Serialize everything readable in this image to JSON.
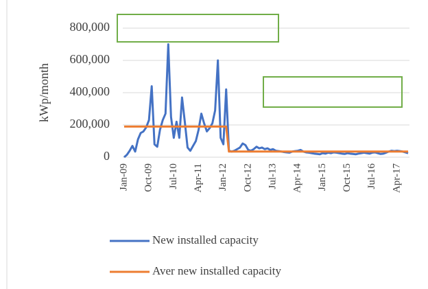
{
  "chart_data": {
    "type": "line",
    "y_label": "kWp/month",
    "categories": [
      "Jan-09",
      null,
      null,
      null,
      null,
      null,
      null,
      null,
      null,
      "Oct-09",
      null,
      null,
      null,
      null,
      null,
      null,
      null,
      null,
      "Jul-10",
      null,
      null,
      null,
      null,
      null,
      null,
      null,
      null,
      "Apr-11",
      null,
      null,
      null,
      null,
      null,
      null,
      null,
      null,
      "Jan-12",
      null,
      null,
      null,
      null,
      null,
      null,
      null,
      null,
      "Oct-12",
      null,
      null,
      null,
      null,
      null,
      null,
      null,
      null,
      "Jul-13",
      null,
      null,
      null,
      null,
      null,
      null,
      null,
      null,
      "Apr-14",
      null,
      null,
      null,
      null,
      null,
      null,
      null,
      null,
      "Jan-15",
      null,
      null,
      null,
      null,
      null,
      null,
      null,
      null,
      "Oct-15",
      null,
      null,
      null,
      null,
      null,
      null,
      null,
      null,
      "Jul-16",
      null,
      null,
      null,
      null,
      null,
      null,
      null,
      null,
      "Apr-17",
      null,
      null,
      null,
      null
    ],
    "series": [
      {
        "name": "New installed capacity",
        "color": "#4472c4",
        "values": [
          0,
          15000,
          40000,
          70000,
          35000,
          110000,
          150000,
          160000,
          185000,
          230000,
          440000,
          80000,
          65000,
          170000,
          230000,
          270000,
          700000,
          250000,
          120000,
          220000,
          120000,
          370000,
          220000,
          60000,
          40000,
          70000,
          100000,
          170000,
          270000,
          210000,
          160000,
          180000,
          210000,
          290000,
          600000,
          120000,
          80000,
          420000,
          40000,
          35000,
          40000,
          50000,
          60000,
          85000,
          75000,
          45000,
          40000,
          50000,
          65000,
          55000,
          60000,
          50000,
          55000,
          45000,
          50000,
          40000,
          38000,
          35000,
          32000,
          30000,
          28000,
          35000,
          38000,
          40000,
          45000,
          35000,
          30000,
          28000,
          25000,
          22000,
          20000,
          18000,
          25000,
          22000,
          28000,
          25000,
          30000,
          28000,
          25000,
          22000,
          20000,
          25000,
          22000,
          20000,
          18000,
          22000,
          25000,
          28000,
          25000,
          22000,
          28000,
          30000,
          25000,
          20000,
          22000,
          28000,
          35000,
          40000,
          38000,
          40000,
          38000,
          35000,
          30000,
          25000
        ]
      },
      {
        "name": "Aver new installed capacity",
        "color": "#ed7d31",
        "values": [
          190000,
          190000,
          190000,
          190000,
          190000,
          190000,
          190000,
          190000,
          190000,
          190000,
          190000,
          190000,
          190000,
          190000,
          190000,
          190000,
          190000,
          190000,
          190000,
          190000,
          190000,
          190000,
          190000,
          190000,
          190000,
          190000,
          190000,
          190000,
          190000,
          190000,
          190000,
          190000,
          190000,
          190000,
          190000,
          190000,
          190000,
          190000,
          35000,
          35000,
          35000,
          35000,
          35000,
          35000,
          35000,
          35000,
          35000,
          35000,
          35000,
          35000,
          35000,
          35000,
          35000,
          35000,
          35000,
          35000,
          35000,
          35000,
          35000,
          35000,
          35000,
          35000,
          35000,
          35000,
          35000,
          35000,
          35000,
          35000,
          35000,
          35000,
          35000,
          35000,
          35000,
          35000,
          35000,
          35000,
          35000,
          35000,
          35000,
          35000,
          35000,
          35000,
          35000,
          35000,
          35000,
          35000,
          35000,
          35000,
          35000,
          35000,
          35000,
          35000,
          35000,
          35000,
          35000,
          35000,
          35000,
          35000,
          35000,
          35000,
          35000,
          35000,
          35000,
          35000
        ]
      }
    ],
    "ylim": [
      0,
      800000
    ],
    "yticks": [
      0,
      {
        "value": 200000,
        "label": "200,000"
      },
      {
        "value": 400000,
        "label": "400,000"
      },
      {
        "value": 600000,
        "label": "600,000"
      },
      {
        "value": 800000,
        "label": "800,000"
      }
    ],
    "grid": true
  }
}
